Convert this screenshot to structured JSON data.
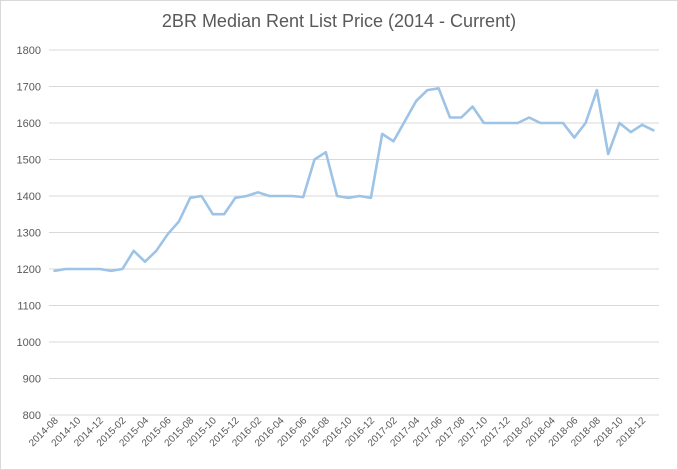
{
  "chart_data": {
    "type": "line",
    "title": "2BR Median Rent List Price (2014 - Current)",
    "xlabel": "",
    "ylabel": "",
    "ylim": [
      800,
      1800
    ],
    "yticks": [
      800,
      900,
      1000,
      1100,
      1200,
      1300,
      1400,
      1500,
      1600,
      1700,
      1800
    ],
    "grid": true,
    "legend": "none",
    "categories": [
      "2014-08",
      "2014-09",
      "2014-10",
      "2014-11",
      "2014-12",
      "2015-01",
      "2015-02",
      "2015-03",
      "2015-04",
      "2015-05",
      "2015-06",
      "2015-07",
      "2015-08",
      "2015-09",
      "2015-10",
      "2015-11",
      "2015-12",
      "2016-01",
      "2016-02",
      "2016-03",
      "2016-04",
      "2016-05",
      "2016-06",
      "2016-07",
      "2016-08",
      "2016-09",
      "2016-10",
      "2016-11",
      "2016-12",
      "2017-01",
      "2017-02",
      "2017-03",
      "2017-04",
      "2017-05",
      "2017-06",
      "2017-07",
      "2017-08",
      "2017-09",
      "2017-10",
      "2017-11",
      "2017-12",
      "2018-01",
      "2018-02",
      "2018-03",
      "2018-04",
      "2018-05",
      "2018-06",
      "2018-07",
      "2018-08",
      "2018-09",
      "2018-10",
      "2018-11",
      "2018-12",
      "2019-01"
    ],
    "tick_labels": [
      "2014-08",
      "2014-10",
      "2014-12",
      "2015-02",
      "2015-04",
      "2015-06",
      "2015-08",
      "2015-10",
      "2015-12",
      "2016-02",
      "2016-04",
      "2016-06",
      "2016-08",
      "2016-10",
      "2016-12",
      "2017-02",
      "2017-04",
      "2017-06",
      "2017-08",
      "2017-10",
      "2017-12",
      "2018-02",
      "2018-04",
      "2018-06",
      "2018-08",
      "2018-10",
      "2018-12"
    ],
    "series": [
      {
        "values": [
          1195,
          1200,
          1200,
          1200,
          1200,
          1195,
          1200,
          1250,
          1220,
          1250,
          1295,
          1330,
          1395,
          1400,
          1350,
          1350,
          1395,
          1400,
          1410,
          1400,
          1400,
          1400,
          1397,
          1500,
          1520,
          1400,
          1395,
          1400,
          1395,
          1570,
          1550,
          1605,
          1660,
          1690,
          1695,
          1615,
          1615,
          1645,
          1600,
          1600,
          1600,
          1600,
          1615,
          1600,
          1600,
          1600,
          1560,
          1600,
          1690,
          1515,
          1600,
          1575,
          1595,
          1580
        ],
        "color": "#9dc3e6"
      }
    ],
    "colors": {
      "line": "#9dc3e6",
      "grid": "#d9d9d9",
      "text": "#595959"
    }
  }
}
